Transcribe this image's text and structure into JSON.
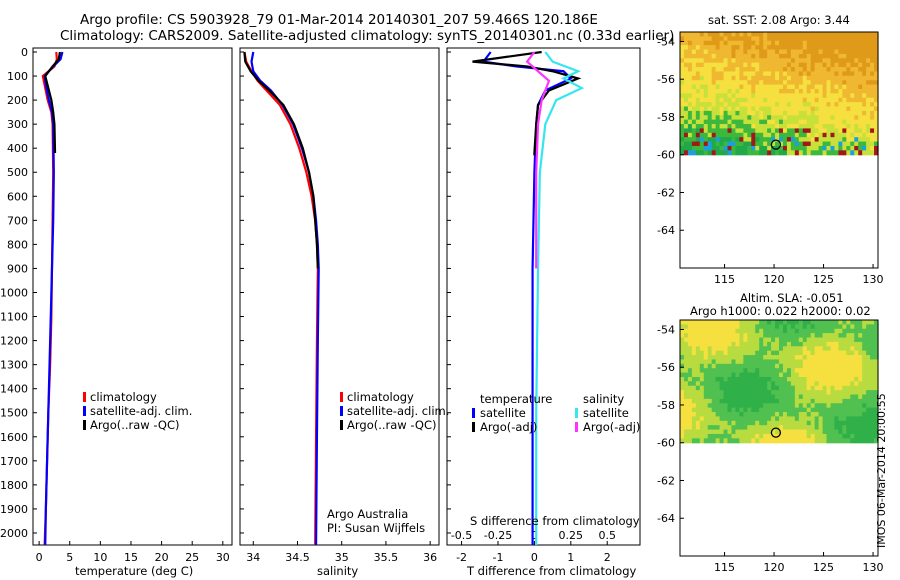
{
  "header": {
    "line1": "Argo profile: CS 5903928_79 01-Mar-2014 20140301_207 59.466S 120.186E",
    "line2": "Climatology: CARS2009. Satellite-adjusted climatology: synTS_20140301.nc (0.33d earlier)"
  },
  "credit": "IMOS 06-Mar-2014 20:00:55",
  "argo_credit": {
    "line1": "Argo Australia",
    "line2": "PI: Susan Wijffels"
  },
  "colors": {
    "red": "#ff0000",
    "blue": "#0000ff",
    "black": "#000000",
    "cyan": "#33e6f0",
    "magenta": "#ff33ff"
  },
  "depth_ticks": [
    0,
    100,
    200,
    300,
    400,
    500,
    600,
    700,
    800,
    900,
    1000,
    1100,
    1200,
    1300,
    1400,
    1500,
    1600,
    1700,
    1800,
    1900,
    2000
  ],
  "legend_left": {
    "items": [
      {
        "label": "climatology",
        "color": "#ff0000"
      },
      {
        "label": "satellite-adj. clim.",
        "color": "#0000ff"
      },
      {
        "label": "Argo(..raw -QC)",
        "color": "#000000"
      }
    ]
  },
  "legend_right": {
    "temperature_title": "temperature",
    "salinity_title": "salinity",
    "temperature_items": [
      {
        "label": "satellite",
        "color": "#0000ff"
      },
      {
        "label": "Argo(-adj)",
        "color": "#000000"
      }
    ],
    "salinity_items": [
      {
        "label": "satellite",
        "color": "#33e6f0"
      },
      {
        "label": "Argo(-adj)",
        "color": "#ff33ff"
      }
    ]
  },
  "chart_data": [
    {
      "type": "line",
      "xlabel": "temperature (deg C)",
      "xticks": [
        0,
        5,
        10,
        15,
        20,
        25,
        30
      ],
      "xlim": [
        -1,
        31.5
      ],
      "ylim": [
        2050,
        0
      ],
      "series": [
        {
          "name": "climatology",
          "color": "#ff0000",
          "x": [
            2.8,
            2.9,
            2.5,
            0.6,
            1.0,
            1.4,
            2.0,
            2.2,
            2.3,
            2.2,
            2.1,
            2.0,
            1.8,
            1.5,
            1.3,
            1.1,
            0.9
          ],
          "y": [
            0,
            30,
            60,
            100,
            150,
            200,
            250,
            300,
            500,
            700,
            900,
            1100,
            1300,
            1500,
            1700,
            1900,
            2050
          ]
        },
        {
          "name": "satellite-adj. clim.",
          "color": "#0000ff",
          "x": [
            3.8,
            3.5,
            2.3,
            0.9,
            1.2,
            1.6,
            2.1,
            2.3,
            2.4,
            2.3,
            2.1,
            1.9,
            1.7,
            1.5,
            1.3,
            1.1,
            1.0
          ],
          "y": [
            0,
            30,
            60,
            100,
            150,
            200,
            250,
            300,
            500,
            700,
            900,
            1100,
            1300,
            1500,
            1700,
            1900,
            2050
          ]
        },
        {
          "name": "Argo(..raw -QC)",
          "color": "#000000",
          "x": [
            3.4,
            3.2,
            2.2,
            1.0,
            1.5,
            2.0,
            2.3,
            2.5,
            2.6
          ],
          "y": [
            0,
            30,
            60,
            100,
            150,
            200,
            250,
            300,
            420
          ]
        }
      ]
    },
    {
      "type": "line",
      "xlabel": "salinity",
      "xticks": [
        34,
        34.5,
        35,
        35.5,
        36
      ],
      "xlim": [
        33.85,
        36.1
      ],
      "ylim": [
        2050,
        0
      ],
      "series": [
        {
          "name": "climatology",
          "color": "#ff0000",
          "x": [
            33.9,
            33.92,
            33.98,
            34.05,
            34.15,
            34.3,
            34.42,
            34.52,
            34.6,
            34.66,
            34.7,
            34.72,
            34.73,
            34.72,
            34.71,
            34.7
          ],
          "y": [
            0,
            40,
            80,
            120,
            160,
            220,
            300,
            400,
            500,
            600,
            700,
            800,
            900,
            1200,
            1600,
            2050
          ]
        },
        {
          "name": "satellite-adj. clim.",
          "color": "#0000ff",
          "x": [
            34.0,
            33.98,
            34.0,
            34.08,
            34.2,
            34.33,
            34.45,
            34.55,
            34.63,
            34.68,
            34.71,
            34.73,
            34.74,
            34.73,
            34.72,
            34.71
          ],
          "y": [
            0,
            40,
            80,
            120,
            160,
            220,
            300,
            400,
            500,
            600,
            700,
            800,
            900,
            1200,
            1600,
            2050
          ]
        },
        {
          "name": "Argo(..raw -QC)",
          "color": "#000000",
          "x": [
            33.9,
            33.91,
            33.97,
            34.06,
            34.18,
            34.34,
            34.46,
            34.56,
            34.63,
            34.68,
            34.7,
            34.72,
            34.73
          ],
          "y": [
            0,
            40,
            80,
            120,
            160,
            220,
            300,
            400,
            500,
            600,
            700,
            800,
            900
          ]
        }
      ]
    },
    {
      "type": "line",
      "xlabel": "T difference from climatology",
      "xlabel_top": "S difference from climatology",
      "xticks": [
        -2,
        -1,
        0,
        1,
        2
      ],
      "xticks_top": [
        -0.5,
        -0.25,
        0,
        0.25,
        0.5
      ],
      "xlim": [
        -2.4,
        2.9
      ],
      "ylim": [
        2050,
        0
      ],
      "series": [
        {
          "name": "satellite (T)",
          "color": "#0000ff",
          "x": [
            -1.2,
            -1.4,
            -0.5,
            0.8,
            1.0,
            0.3,
            0.1,
            0.05,
            0.0,
            -0.05,
            -0.05,
            -0.05
          ],
          "y": [
            0,
            40,
            60,
            80,
            110,
            160,
            220,
            300,
            500,
            900,
            1500,
            2050
          ]
        },
        {
          "name": "Argo(-adj) (T)",
          "color": "#000000",
          "x": [
            0.2,
            -1.7,
            -0.2,
            0.5,
            1.2,
            0.4,
            0.1,
            0.05,
            0.0,
            0.0
          ],
          "y": [
            0,
            40,
            60,
            80,
            110,
            160,
            220,
            300,
            420,
            430
          ]
        },
        {
          "name": "satellite (S)",
          "color": "#33e6f0",
          "x": [
            0.3,
            0.5,
            1.2,
            0.8,
            1.3,
            0.6,
            0.3,
            0.15,
            0.1,
            0.05,
            0.05
          ],
          "y": [
            0,
            40,
            80,
            110,
            150,
            200,
            300,
            500,
            900,
            1500,
            2050
          ]
        },
        {
          "name": "Argo(-adj) (S)",
          "color": "#ff33ff",
          "x": [
            0.0,
            -0.2,
            0.1,
            0.4,
            0.2,
            0.1,
            0.05,
            0.05
          ],
          "y": [
            0,
            40,
            80,
            120,
            200,
            300,
            500,
            900
          ]
        }
      ]
    },
    {
      "type": "heatmap",
      "title": "sat. SST: 2.08 Argo: 3.44",
      "xticks": [
        115,
        120,
        125,
        130
      ],
      "yticks": [
        -54,
        -56,
        -58,
        -60,
        -62,
        -64
      ],
      "xlim": [
        110.5,
        130.5
      ],
      "ylim": [
        -66,
        -53.5
      ],
      "data_extent_lat": [
        -60,
        -53.5
      ],
      "marker": {
        "lon": 120.186,
        "lat": -59.466
      }
    },
    {
      "type": "heatmap",
      "title": "Altim. SLA: -0.051",
      "subtitle": "Argo h1000: 0.022 h2000: 0.02",
      "xticks": [
        115,
        120,
        125,
        130
      ],
      "yticks": [
        -54,
        -56,
        -58,
        -60,
        -62,
        -64
      ],
      "xlim": [
        110.5,
        130.5
      ],
      "ylim": [
        -66,
        -53.5
      ],
      "data_extent_lat": [
        -60,
        -53.5
      ],
      "marker": {
        "lon": 120.186,
        "lat": -59.466
      }
    }
  ]
}
